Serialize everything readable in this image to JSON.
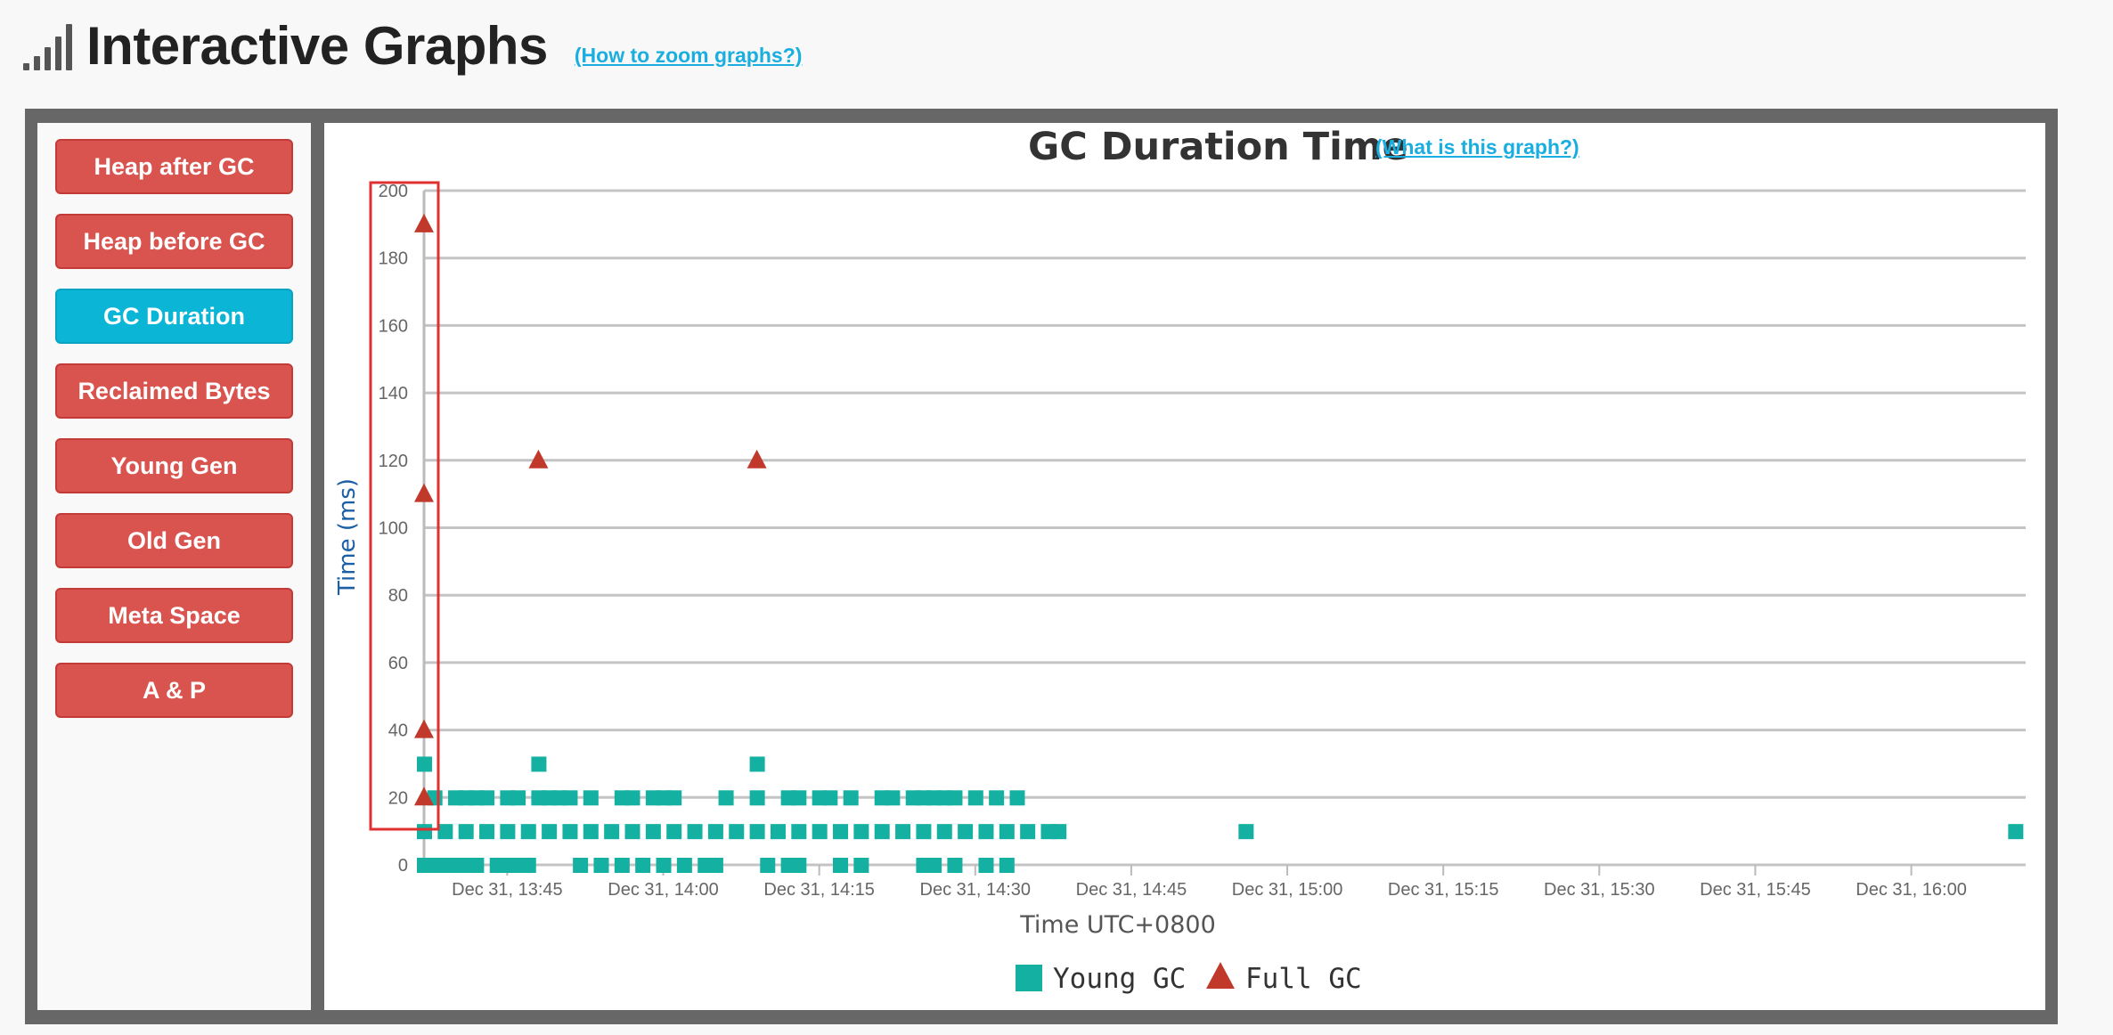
{
  "header": {
    "title": "Interactive Graphs",
    "zoom_link": "(How to zoom graphs?)"
  },
  "sidebar": {
    "items": [
      {
        "label": "Heap after GC",
        "active": false
      },
      {
        "label": "Heap before GC",
        "active": false
      },
      {
        "label": "GC Duration",
        "active": true
      },
      {
        "label": "Reclaimed Bytes",
        "active": false
      },
      {
        "label": "Young Gen",
        "active": false
      },
      {
        "label": "Old Gen",
        "active": false
      },
      {
        "label": "Meta Space",
        "active": false
      },
      {
        "label": "A & P",
        "active": false
      }
    ]
  },
  "chart_header": {
    "what_link": "(What is this graph?)"
  },
  "colors": {
    "young": "#14b0a2",
    "full": "#c0392b",
    "active_button": "#0bb5d6",
    "button": "#d9534f",
    "link": "#1aaee0",
    "highlight_box": "#e03030"
  },
  "chart_data": {
    "type": "scatter",
    "title": "GC Duration Time",
    "xlabel": "Time UTC+0800",
    "ylabel": "Time (ms)",
    "ylim": [
      0,
      200
    ],
    "yticks": [
      0,
      20,
      40,
      60,
      80,
      100,
      120,
      140,
      160,
      180,
      200
    ],
    "xlim": [
      "13:37",
      "16:11"
    ],
    "xticks": [
      {
        "t": "13:45",
        "label": "Dec 31, 13:45"
      },
      {
        "t": "14:00",
        "label": "Dec 31, 14:00"
      },
      {
        "t": "14:15",
        "label": "Dec 31, 14:15"
      },
      {
        "t": "14:30",
        "label": "Dec 31, 14:30"
      },
      {
        "t": "14:45",
        "label": "Dec 31, 14:45"
      },
      {
        "t": "15:00",
        "label": "Dec 31, 15:00"
      },
      {
        "t": "15:15",
        "label": "Dec 31, 15:15"
      },
      {
        "t": "15:30",
        "label": "Dec 31, 15:30"
      },
      {
        "t": "15:45",
        "label": "Dec 31, 15:45"
      },
      {
        "t": "16:00",
        "label": "Dec 31, 16:00"
      }
    ],
    "grid": true,
    "legend_position": "bottom",
    "series": [
      {
        "name": "Young GC",
        "marker": "square",
        "points": [
          {
            "x": "13:37",
            "y": 0
          },
          {
            "x": "13:38",
            "y": 0
          },
          {
            "x": "13:39",
            "y": 0
          },
          {
            "x": "13:40",
            "y": 0
          },
          {
            "x": "13:41",
            "y": 0
          },
          {
            "x": "13:42",
            "y": 0
          },
          {
            "x": "13:44",
            "y": 0
          },
          {
            "x": "13:45",
            "y": 0
          },
          {
            "x": "13:46",
            "y": 0
          },
          {
            "x": "13:47",
            "y": 0
          },
          {
            "x": "13:52",
            "y": 0
          },
          {
            "x": "13:54",
            "y": 0
          },
          {
            "x": "13:56",
            "y": 0
          },
          {
            "x": "13:58",
            "y": 0
          },
          {
            "x": "14:00",
            "y": 0
          },
          {
            "x": "14:02",
            "y": 0
          },
          {
            "x": "14:04",
            "y": 0
          },
          {
            "x": "14:05",
            "y": 0
          },
          {
            "x": "14:10",
            "y": 0
          },
          {
            "x": "14:12",
            "y": 0
          },
          {
            "x": "14:13",
            "y": 0
          },
          {
            "x": "14:17",
            "y": 0
          },
          {
            "x": "14:19",
            "y": 0
          },
          {
            "x": "14:25",
            "y": 0
          },
          {
            "x": "14:26",
            "y": 0
          },
          {
            "x": "14:28",
            "y": 0
          },
          {
            "x": "14:31",
            "y": 0
          },
          {
            "x": "14:33",
            "y": 0
          },
          {
            "x": "13:37",
            "y": 10
          },
          {
            "x": "13:39",
            "y": 10
          },
          {
            "x": "13:41",
            "y": 10
          },
          {
            "x": "13:43",
            "y": 10
          },
          {
            "x": "13:45",
            "y": 10
          },
          {
            "x": "13:47",
            "y": 10
          },
          {
            "x": "13:49",
            "y": 10
          },
          {
            "x": "13:51",
            "y": 10
          },
          {
            "x": "13:53",
            "y": 10
          },
          {
            "x": "13:55",
            "y": 10
          },
          {
            "x": "13:57",
            "y": 10
          },
          {
            "x": "13:59",
            "y": 10
          },
          {
            "x": "14:01",
            "y": 10
          },
          {
            "x": "14:03",
            "y": 10
          },
          {
            "x": "14:05",
            "y": 10
          },
          {
            "x": "14:07",
            "y": 10
          },
          {
            "x": "14:09",
            "y": 10
          },
          {
            "x": "14:11",
            "y": 10
          },
          {
            "x": "14:13",
            "y": 10
          },
          {
            "x": "14:15",
            "y": 10
          },
          {
            "x": "14:17",
            "y": 10
          },
          {
            "x": "14:19",
            "y": 10
          },
          {
            "x": "14:21",
            "y": 10
          },
          {
            "x": "14:23",
            "y": 10
          },
          {
            "x": "14:25",
            "y": 10
          },
          {
            "x": "14:27",
            "y": 10
          },
          {
            "x": "14:29",
            "y": 10
          },
          {
            "x": "14:31",
            "y": 10
          },
          {
            "x": "14:33",
            "y": 10
          },
          {
            "x": "14:35",
            "y": 10
          },
          {
            "x": "14:37",
            "y": 10
          },
          {
            "x": "14:38",
            "y": 10
          },
          {
            "x": "14:56",
            "y": 10
          },
          {
            "x": "16:10",
            "y": 10
          },
          {
            "x": "13:38",
            "y": 20
          },
          {
            "x": "13:40",
            "y": 20
          },
          {
            "x": "13:41",
            "y": 20
          },
          {
            "x": "13:42",
            "y": 20
          },
          {
            "x": "13:43",
            "y": 20
          },
          {
            "x": "13:45",
            "y": 20
          },
          {
            "x": "13:46",
            "y": 20
          },
          {
            "x": "13:48",
            "y": 20
          },
          {
            "x": "13:49",
            "y": 20
          },
          {
            "x": "13:50",
            "y": 20
          },
          {
            "x": "13:51",
            "y": 20
          },
          {
            "x": "13:53",
            "y": 20
          },
          {
            "x": "13:56",
            "y": 20
          },
          {
            "x": "13:57",
            "y": 20
          },
          {
            "x": "13:59",
            "y": 20
          },
          {
            "x": "14:00",
            "y": 20
          },
          {
            "x": "14:01",
            "y": 20
          },
          {
            "x": "14:06",
            "y": 20
          },
          {
            "x": "14:09",
            "y": 20
          },
          {
            "x": "14:12",
            "y": 20
          },
          {
            "x": "14:13",
            "y": 20
          },
          {
            "x": "14:15",
            "y": 20
          },
          {
            "x": "14:16",
            "y": 20
          },
          {
            "x": "14:18",
            "y": 20
          },
          {
            "x": "14:21",
            "y": 20
          },
          {
            "x": "14:22",
            "y": 20
          },
          {
            "x": "14:24",
            "y": 20
          },
          {
            "x": "14:25",
            "y": 20
          },
          {
            "x": "14:26",
            "y": 20
          },
          {
            "x": "14:27",
            "y": 20
          },
          {
            "x": "14:28",
            "y": 20
          },
          {
            "x": "14:30",
            "y": 20
          },
          {
            "x": "14:32",
            "y": 20
          },
          {
            "x": "14:34",
            "y": 20
          },
          {
            "x": "13:37",
            "y": 30
          },
          {
            "x": "13:48",
            "y": 30
          },
          {
            "x": "14:09",
            "y": 30
          }
        ]
      },
      {
        "name": "Full GC",
        "marker": "triangle",
        "points": [
          {
            "x": "13:37",
            "y": 190
          },
          {
            "x": "13:37",
            "y": 110
          },
          {
            "x": "13:48",
            "y": 120
          },
          {
            "x": "14:09",
            "y": 120
          },
          {
            "x": "13:37",
            "y": 40
          },
          {
            "x": "13:37",
            "y": 20
          }
        ]
      }
    ]
  }
}
